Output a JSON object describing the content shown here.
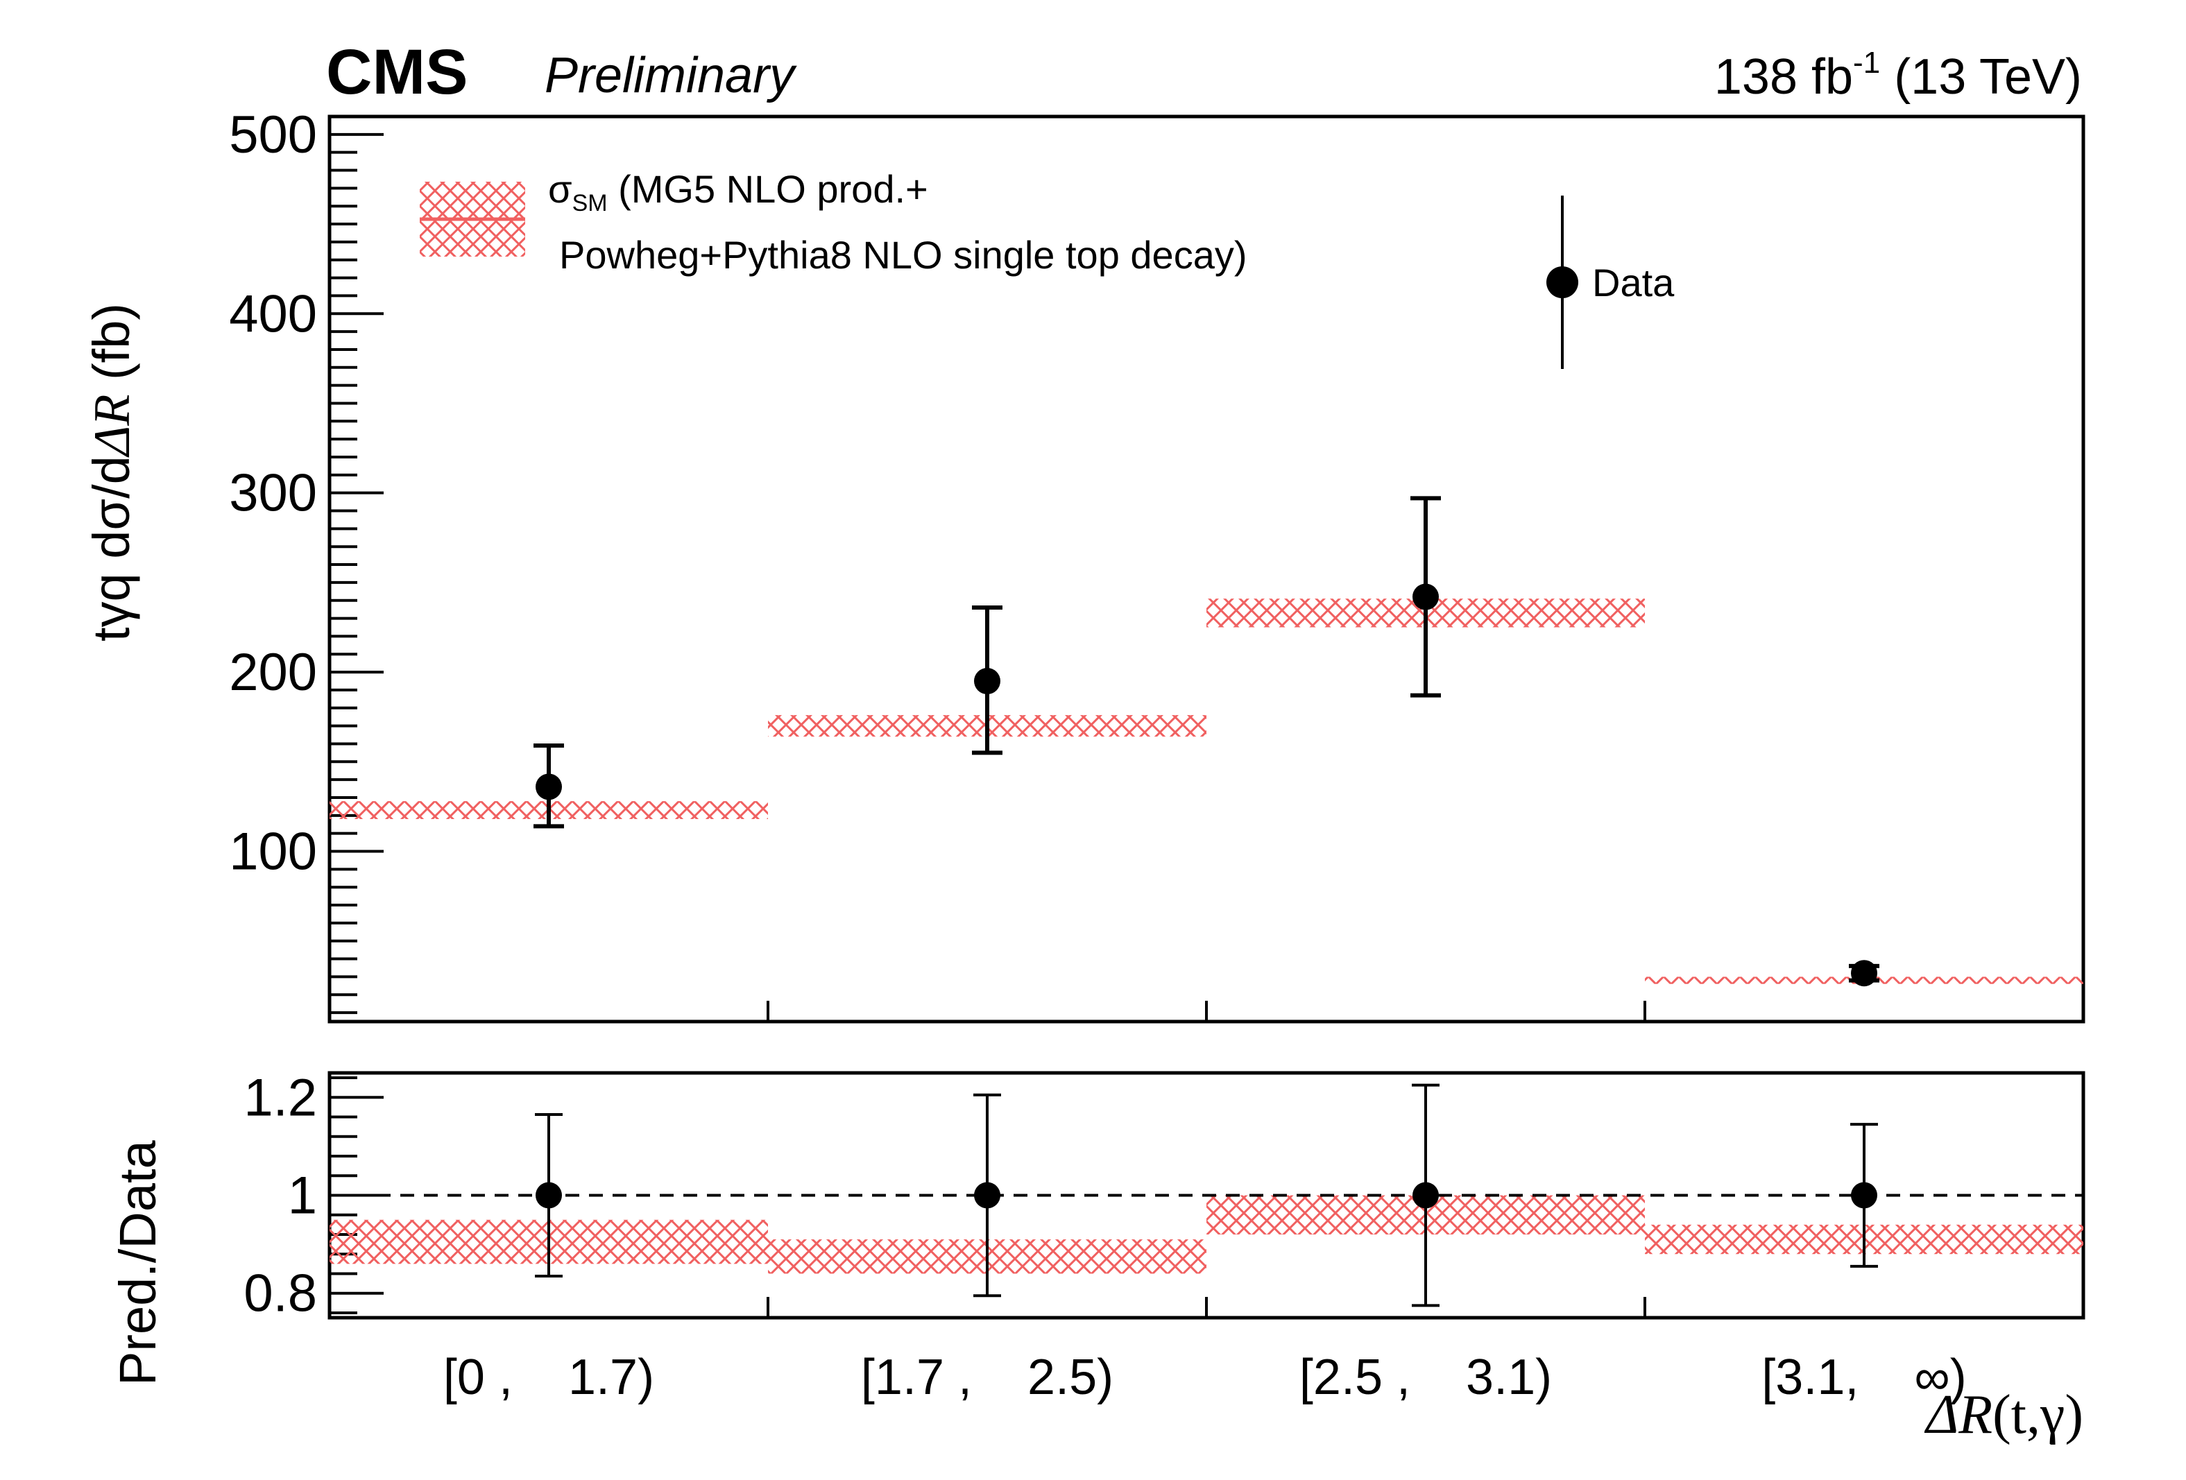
{
  "header": {
    "experiment": "CMS",
    "status": "Preliminary",
    "lumi_value": "138 fb",
    "lumi_exp": "-1",
    "energy": "(13 TeV)"
  },
  "chart_data": [
    {
      "type": "bar",
      "panel": "main",
      "ylabel_prefix": "tγq  dσ/d",
      "ylabel_var": "ΔR",
      "ylabel_unit": " (fb)",
      "ylim": [
        5,
        510
      ],
      "yticks": [
        "100",
        "200",
        "300",
        "400",
        "500"
      ],
      "categories": [
        "[0 ,    1.7)",
        "[1.7 ,    2.5)",
        "[2.5 ,    3.1)",
        "[3.1,    ∞)"
      ],
      "series": [
        {
          "name": "σSM (MG5 NLO prod.+ Powheg+Pythia8 NLO single top decay)",
          "style": "hatched band",
          "color": "#f06060",
          "values": [
            123,
            170,
            233,
            28
          ],
          "band_low": [
            118,
            164,
            225,
            26
          ],
          "band_high": [
            128,
            176,
            241,
            30
          ]
        },
        {
          "name": "Data",
          "style": "points",
          "color": "#000000",
          "values": [
            136,
            195,
            242,
            32
          ],
          "err_low": [
            22,
            40,
            55,
            4
          ],
          "err_high": [
            23,
            41,
            55,
            4
          ]
        }
      ],
      "legend": {
        "band_label_sigma": "σ",
        "band_label_sub": "SM",
        "band_label_line1": " (MG5 NLO prod.+",
        "band_label_line2": "Powheg+Pythia8 NLO single top decay)",
        "data_label": "Data"
      }
    },
    {
      "type": "bar",
      "panel": "ratio",
      "ylabel": "Pred./Data",
      "ylim": [
        0.75,
        1.25
      ],
      "yticks": [
        "0.8",
        "1",
        "1.2"
      ],
      "categories": [
        "[0 ,    1.7)",
        "[1.7 ,    2.5)",
        "[2.5 ,    3.1)",
        "[3.1,    ∞)"
      ],
      "xlabel_var": "ΔR",
      "xlabel_rest": "(t,γ)",
      "reference_line": 1.0,
      "series": [
        {
          "name": "Pred./Data band",
          "style": "hatched band",
          "color": "#f06060",
          "band_low": [
            0.86,
            0.84,
            0.92,
            0.88
          ],
          "band_high": [
            0.95,
            0.91,
            1.0,
            0.94
          ]
        },
        {
          "name": "Data",
          "style": "points",
          "color": "#000000",
          "values": [
            1.0,
            1.0,
            1.0,
            1.0
          ],
          "err_low": [
            0.165,
            0.205,
            0.225,
            0.145
          ],
          "err_high": [
            0.165,
            0.205,
            0.225,
            0.145
          ]
        }
      ]
    }
  ]
}
